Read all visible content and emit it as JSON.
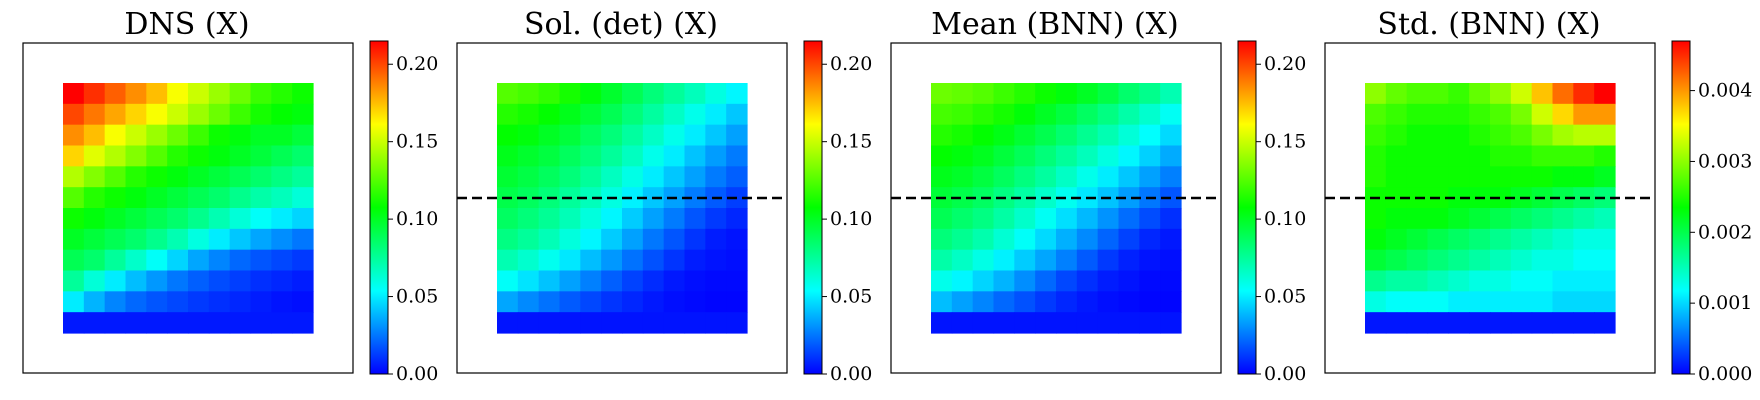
{
  "colormap": [
    "#0000ff",
    "#00ffff",
    "#00ff00",
    "#ffff00",
    "#ff0000"
  ],
  "chart_data": [
    {
      "type": "heatmap",
      "title": "DNS (X)",
      "rows": 12,
      "cols": 12,
      "dashed_line": false,
      "colorbar": {
        "min": 0,
        "max": 0.215,
        "ticks": [
          0.0,
          0.05,
          0.1,
          0.15,
          0.2
        ],
        "tick_labels": [
          "0.00",
          "0.05",
          "0.10",
          "0.15",
          "0.20"
        ]
      },
      "values": [
        [
          0.215,
          0.205,
          0.195,
          0.185,
          0.175,
          0.16,
          0.15,
          0.14,
          0.13,
          0.12,
          0.115,
          0.11
        ],
        [
          0.2,
          0.19,
          0.18,
          0.17,
          0.16,
          0.15,
          0.14,
          0.13,
          0.12,
          0.112,
          0.108,
          0.105
        ],
        [
          0.185,
          0.175,
          0.16,
          0.15,
          0.14,
          0.13,
          0.12,
          0.11,
          0.105,
          0.1,
          0.1,
          0.095
        ],
        [
          0.17,
          0.155,
          0.145,
          0.135,
          0.125,
          0.115,
          0.11,
          0.105,
          0.1,
          0.095,
          0.09,
          0.085
        ],
        [
          0.145,
          0.135,
          0.125,
          0.115,
          0.11,
          0.105,
          0.1,
          0.095,
          0.09,
          0.085,
          0.08,
          0.075
        ],
        [
          0.125,
          0.115,
          0.11,
          0.105,
          0.1,
          0.095,
          0.09,
          0.085,
          0.078,
          0.072,
          0.068,
          0.062
        ],
        [
          0.11,
          0.105,
          0.1,
          0.095,
          0.09,
          0.085,
          0.078,
          0.07,
          0.062,
          0.055,
          0.05,
          0.045
        ],
        [
          0.1,
          0.095,
          0.09,
          0.085,
          0.078,
          0.07,
          0.06,
          0.05,
          0.042,
          0.035,
          0.03,
          0.025
        ],
        [
          0.09,
          0.085,
          0.075,
          0.065,
          0.055,
          0.045,
          0.035,
          0.028,
          0.022,
          0.018,
          0.015,
          0.012
        ],
        [
          0.075,
          0.062,
          0.05,
          0.04,
          0.032,
          0.025,
          0.02,
          0.016,
          0.013,
          0.01,
          0.008,
          0.006
        ],
        [
          0.05,
          0.038,
          0.028,
          0.022,
          0.018,
          0.015,
          0.012,
          0.01,
          0.008,
          0.006,
          0.004,
          0.003
        ],
        [
          0.005,
          0.005,
          0.005,
          0.005,
          0.005,
          0.005,
          0.005,
          0.005,
          0.005,
          0.005,
          0.005,
          0.005
        ]
      ]
    },
    {
      "type": "heatmap",
      "title": "Sol. (det) (X)",
      "rows": 12,
      "cols": 12,
      "dashed_line": true,
      "colorbar": {
        "min": 0,
        "max": 0.215,
        "ticks": [
          0.0,
          0.05,
          0.1,
          0.15,
          0.2
        ],
        "tick_labels": [
          "0.00",
          "0.05",
          "0.10",
          "0.15",
          "0.20"
        ]
      },
      "values": [
        [
          0.125,
          0.122,
          0.118,
          0.112,
          0.105,
          0.098,
          0.09,
          0.082,
          0.075,
          0.068,
          0.06,
          0.052
        ],
        [
          0.115,
          0.112,
          0.108,
          0.102,
          0.096,
          0.09,
          0.082,
          0.074,
          0.066,
          0.058,
          0.05,
          0.042
        ],
        [
          0.108,
          0.105,
          0.1,
          0.095,
          0.088,
          0.082,
          0.074,
          0.066,
          0.058,
          0.05,
          0.042,
          0.034
        ],
        [
          0.102,
          0.098,
          0.094,
          0.088,
          0.082,
          0.075,
          0.067,
          0.058,
          0.05,
          0.041,
          0.033,
          0.026
        ],
        [
          0.097,
          0.093,
          0.088,
          0.082,
          0.075,
          0.067,
          0.059,
          0.05,
          0.042,
          0.034,
          0.026,
          0.02
        ],
        [
          0.092,
          0.088,
          0.082,
          0.075,
          0.068,
          0.06,
          0.051,
          0.042,
          0.034,
          0.026,
          0.019,
          0.013
        ],
        [
          0.087,
          0.082,
          0.076,
          0.069,
          0.061,
          0.052,
          0.043,
          0.034,
          0.026,
          0.018,
          0.012,
          0.008
        ],
        [
          0.08,
          0.075,
          0.069,
          0.061,
          0.052,
          0.043,
          0.034,
          0.025,
          0.018,
          0.011,
          0.006,
          0.004
        ],
        [
          0.07,
          0.064,
          0.057,
          0.049,
          0.04,
          0.032,
          0.024,
          0.017,
          0.011,
          0.006,
          0.004,
          0.003
        ],
        [
          0.055,
          0.048,
          0.041,
          0.034,
          0.027,
          0.02,
          0.014,
          0.009,
          0.005,
          0.003,
          0.002,
          0.002
        ],
        [
          0.035,
          0.029,
          0.024,
          0.019,
          0.015,
          0.011,
          0.008,
          0.005,
          0.003,
          0.002,
          0.001,
          0.001
        ],
        [
          0.004,
          0.004,
          0.004,
          0.004,
          0.004,
          0.004,
          0.004,
          0.004,
          0.004,
          0.004,
          0.004,
          0.004
        ]
      ]
    },
    {
      "type": "heatmap",
      "title": "Mean (BNN) (X)",
      "rows": 12,
      "cols": 12,
      "dashed_line": true,
      "colorbar": {
        "min": 0,
        "max": 0.215,
        "ticks": [
          0.0,
          0.05,
          0.1,
          0.15,
          0.2
        ],
        "tick_labels": [
          "0.00",
          "0.05",
          "0.10",
          "0.15",
          "0.20"
        ]
      },
      "values": [
        [
          0.13,
          0.128,
          0.125,
          0.12,
          0.115,
          0.11,
          0.105,
          0.1,
          0.093,
          0.085,
          0.078,
          0.07
        ],
        [
          0.122,
          0.12,
          0.116,
          0.112,
          0.106,
          0.1,
          0.094,
          0.087,
          0.08,
          0.072,
          0.064,
          0.056
        ],
        [
          0.115,
          0.112,
          0.108,
          0.103,
          0.097,
          0.091,
          0.084,
          0.077,
          0.07,
          0.062,
          0.054,
          0.046
        ],
        [
          0.108,
          0.105,
          0.101,
          0.095,
          0.089,
          0.082,
          0.075,
          0.068,
          0.06,
          0.052,
          0.044,
          0.036
        ],
        [
          0.102,
          0.099,
          0.094,
          0.088,
          0.081,
          0.074,
          0.066,
          0.058,
          0.05,
          0.042,
          0.034,
          0.027
        ],
        [
          0.096,
          0.092,
          0.087,
          0.08,
          0.073,
          0.065,
          0.057,
          0.049,
          0.041,
          0.033,
          0.025,
          0.018
        ],
        [
          0.09,
          0.085,
          0.08,
          0.073,
          0.065,
          0.056,
          0.047,
          0.039,
          0.031,
          0.023,
          0.016,
          0.01
        ],
        [
          0.082,
          0.077,
          0.071,
          0.063,
          0.055,
          0.046,
          0.037,
          0.029,
          0.021,
          0.014,
          0.008,
          0.005
        ],
        [
          0.072,
          0.066,
          0.059,
          0.051,
          0.043,
          0.035,
          0.027,
          0.019,
          0.012,
          0.007,
          0.004,
          0.003
        ],
        [
          0.058,
          0.052,
          0.045,
          0.038,
          0.03,
          0.022,
          0.015,
          0.01,
          0.006,
          0.004,
          0.002,
          0.002
        ],
        [
          0.04,
          0.034,
          0.028,
          0.022,
          0.017,
          0.012,
          0.008,
          0.005,
          0.003,
          0.002,
          0.001,
          0.001
        ],
        [
          0.004,
          0.004,
          0.004,
          0.004,
          0.004,
          0.004,
          0.004,
          0.004,
          0.004,
          0.004,
          0.004,
          0.004
        ]
      ]
    },
    {
      "type": "heatmap",
      "title": "Std. (BNN) (X)",
      "rows": 12,
      "cols": 12,
      "dashed_line": true,
      "colorbar": {
        "min": 0,
        "max": 0.0047,
        "ticks": [
          0.0,
          0.001,
          0.002,
          0.003,
          0.004
        ],
        "tick_labels": [
          "0.000",
          "0.001",
          "0.002",
          "0.003",
          "0.004"
        ]
      },
      "values": [
        [
          0.003,
          0.0028,
          0.0027,
          0.0027,
          0.0026,
          0.0028,
          0.003,
          0.0033,
          0.0038,
          0.0042,
          0.0045,
          0.0047
        ],
        [
          0.0027,
          0.0026,
          0.0025,
          0.0025,
          0.0025,
          0.0026,
          0.0027,
          0.0029,
          0.0033,
          0.0037,
          0.004,
          0.004
        ],
        [
          0.0026,
          0.0025,
          0.0024,
          0.0024,
          0.0024,
          0.0025,
          0.0026,
          0.0027,
          0.0029,
          0.0031,
          0.0032,
          0.0032
        ],
        [
          0.0025,
          0.0024,
          0.0024,
          0.0024,
          0.0024,
          0.0024,
          0.0025,
          0.0025,
          0.0026,
          0.0026,
          0.0026,
          0.0025
        ],
        [
          0.0025,
          0.0024,
          0.0024,
          0.0024,
          0.0024,
          0.0024,
          0.0024,
          0.0024,
          0.0024,
          0.0023,
          0.0023,
          0.0022
        ],
        [
          0.0024,
          0.0024,
          0.0024,
          0.0024,
          0.0023,
          0.0023,
          0.0023,
          0.0022,
          0.0021,
          0.002,
          0.0019,
          0.0018
        ],
        [
          0.0024,
          0.0023,
          0.0023,
          0.0023,
          0.0022,
          0.0021,
          0.002,
          0.0019,
          0.0018,
          0.0017,
          0.0016,
          0.0015
        ],
        [
          0.0023,
          0.0022,
          0.0021,
          0.002,
          0.0019,
          0.0018,
          0.0017,
          0.0016,
          0.0015,
          0.0014,
          0.0013,
          0.0013
        ],
        [
          0.0021,
          0.002,
          0.0019,
          0.0018,
          0.0017,
          0.0016,
          0.0015,
          0.0014,
          0.0013,
          0.0013,
          0.0012,
          0.0012
        ],
        [
          0.0017,
          0.0016,
          0.0016,
          0.0015,
          0.0014,
          0.0013,
          0.0013,
          0.0012,
          0.0012,
          0.0011,
          0.0011,
          0.0011
        ],
        [
          0.0013,
          0.0012,
          0.0012,
          0.0012,
          0.0011,
          0.0011,
          0.0011,
          0.0011,
          0.0011,
          0.001,
          0.001,
          0.001
        ],
        [
          0.0001,
          0.0001,
          0.0001,
          0.0001,
          0.0001,
          0.0001,
          0.0001,
          0.0001,
          0.0001,
          0.0001,
          0.0001,
          0.0001
        ]
      ]
    }
  ]
}
